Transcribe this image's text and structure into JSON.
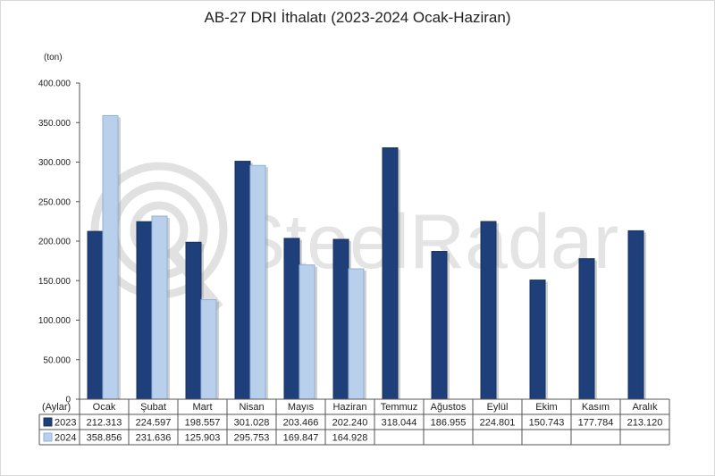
{
  "chart_data": {
    "type": "bar",
    "title": "AB-27 DRI İthalatı (2023-2024 Ocak-Haziran)",
    "ylabel": "(ton)",
    "table_row_header": "(Aylar)",
    "categories": [
      "Ocak",
      "Şubat",
      "Mart",
      "Nisan",
      "Mayıs",
      "Haziran",
      "Temmuz",
      "Ağustos",
      "Eylül",
      "Ekim",
      "Kasım",
      "Aralık"
    ],
    "ylim": [
      0,
      400000
    ],
    "yticks": [
      0,
      50000,
      100000,
      150000,
      200000,
      250000,
      300000,
      350000,
      400000
    ],
    "ytick_labels": [
      "0",
      "50.000",
      "100.000",
      "150.000",
      "200.000",
      "250.000",
      "300.000",
      "350.000",
      "400.000"
    ],
    "grid": false,
    "series": [
      {
        "name": "2023",
        "color": "#1f3f7a",
        "values": [
          212313,
          224597,
          198557,
          301028,
          203466,
          202240,
          318044,
          186955,
          224801,
          150743,
          177784,
          213120
        ],
        "labels": [
          "212.313",
          "224.597",
          "198.557",
          "301.028",
          "203.466",
          "202.240",
          "318.044",
          "186.955",
          "224.801",
          "150.743",
          "177.784",
          "213.120"
        ]
      },
      {
        "name": "2024",
        "color": "#b9d0ec",
        "values": [
          358856,
          231636,
          125903,
          295753,
          169847,
          164928,
          null,
          null,
          null,
          null,
          null,
          null
        ],
        "labels": [
          "358.856",
          "231.636",
          "125.903",
          "295.753",
          "169.847",
          "164.928",
          "",
          "",
          "",
          "",
          "",
          ""
        ]
      }
    ]
  },
  "watermark": {
    "text": "SteelRadar"
  }
}
